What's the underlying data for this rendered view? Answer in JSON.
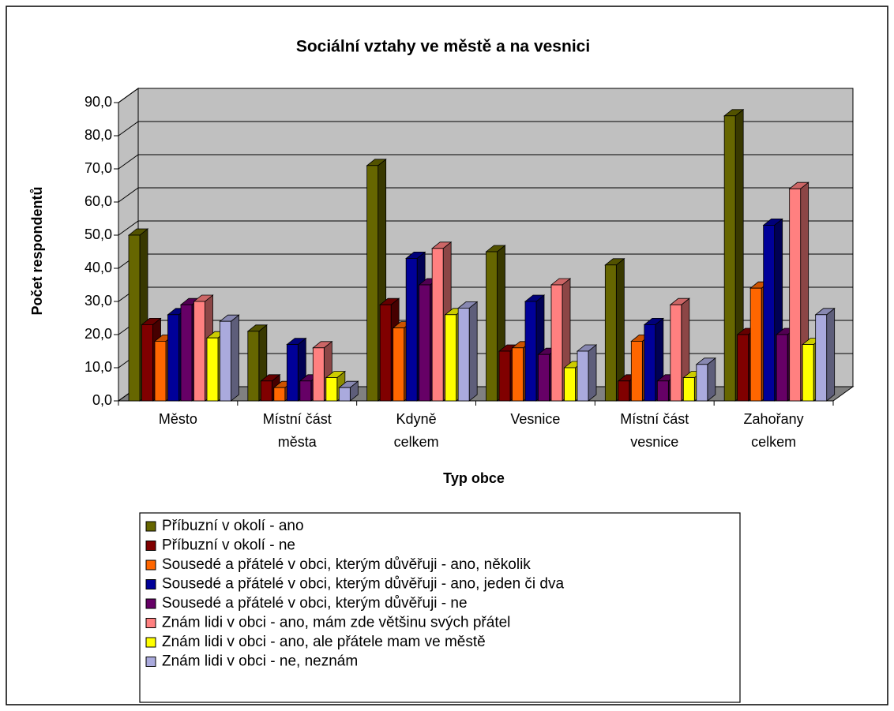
{
  "chart_data": {
    "type": "bar3d",
    "title": "Sociální vztahy ve městě a na vesnici",
    "x_label": "Typ obce",
    "y_label": "Počet respondentů",
    "categories": [
      "Město",
      "Místní část města",
      "Kdyně celkem",
      "Vesnice",
      "Místní část vesnice",
      "Zahořany celkem"
    ],
    "series": [
      {
        "name": "Příbuzní v okolí -  ano",
        "color": "#666600",
        "values": [
          50,
          21,
          71,
          45,
          41,
          86
        ]
      },
      {
        "name": "Příbuzní v okolí -  ne",
        "color": "#800000",
        "values": [
          23,
          6,
          29,
          15,
          6,
          20
        ]
      },
      {
        "name": "Sousedé a přátelé v obci, kterým důvěřuji -  ano, několik",
        "color": "#ff6600",
        "values": [
          18,
          4,
          22,
          16,
          18,
          34
        ]
      },
      {
        "name": "Sousedé a přátelé v obci, kterým důvěřuji -  ano, jeden či dva",
        "color": "#000099",
        "values": [
          26,
          17,
          43,
          30,
          23,
          53
        ]
      },
      {
        "name": "Sousedé a přátelé v obci, kterým důvěřuji -  ne",
        "color": "#660066",
        "values": [
          29,
          6,
          35,
          14,
          6,
          20
        ]
      },
      {
        "name": "Znám lidi v obci -  ano, mám zde většinu svých přátel",
        "color": "#ff8080",
        "values": [
          30,
          16,
          46,
          35,
          29,
          64
        ]
      },
      {
        "name": "Znám lidi v obci -  ano, ale přátele mam ve městě",
        "color": "#ffff00",
        "values": [
          19,
          7,
          26,
          10,
          7,
          17
        ]
      },
      {
        "name": "Znám lidi v obci -  ne, neznám",
        "color": "#aaaadd",
        "values": [
          24,
          4,
          28,
          15,
          11,
          26
        ]
      }
    ],
    "ylim": [
      0,
      90
    ],
    "yticks": [
      {
        "value": 0,
        "label": "0,0"
      },
      {
        "value": 10,
        "label": "10,0"
      },
      {
        "value": 20,
        "label": "20,0"
      },
      {
        "value": 30,
        "label": "30,0"
      },
      {
        "value": 40,
        "label": "40,0"
      },
      {
        "value": 50,
        "label": "50,0"
      },
      {
        "value": 60,
        "label": "60,0"
      },
      {
        "value": 70,
        "label": "70,0"
      },
      {
        "value": 80,
        "label": "80,0"
      },
      {
        "value": 90,
        "label": "90,0"
      }
    ],
    "grid": true
  }
}
